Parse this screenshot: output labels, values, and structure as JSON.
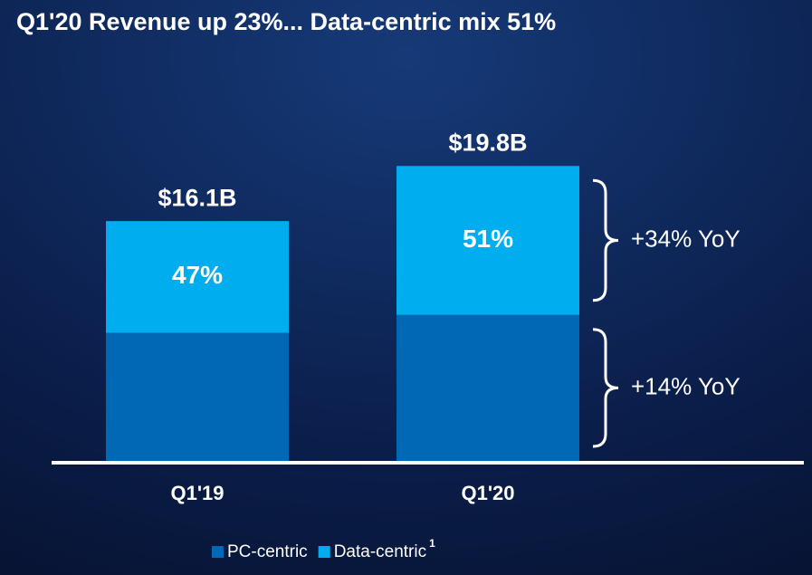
{
  "chart_data": {
    "type": "stacked_bar",
    "title": "Q1'20 Revenue up 23%... Data-centric mix 51%",
    "categories": [
      "Q1'19",
      "Q1'20"
    ],
    "series": [
      {
        "name": "PC-centric",
        "color": "#0068b5",
        "values": [
          8.6,
          9.8
        ]
      },
      {
        "name": "Data-centric",
        "color": "#00aeef",
        "values": [
          7.5,
          10.0
        ]
      }
    ],
    "totals": [
      {
        "value": 16.1,
        "label": "$16.1B"
      },
      {
        "value": 19.8,
        "label": "$19.8B"
      }
    ],
    "mix_labels": [
      "47%",
      "51%"
    ],
    "annotations": [
      "+14% YoY",
      "+34% YoY"
    ],
    "legend_footnote": "1"
  }
}
